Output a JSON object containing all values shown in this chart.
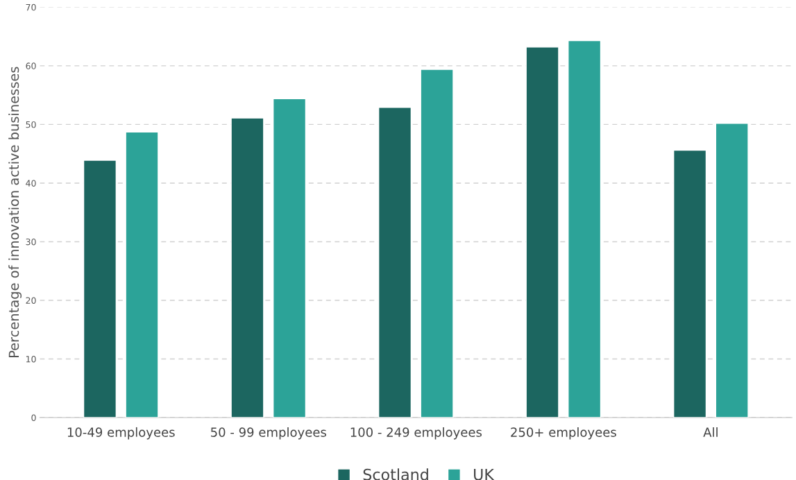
{
  "chart_data": {
    "type": "bar",
    "ylabel": "Percentage of innovation active businesses",
    "categories": [
      "10-49 employees",
      "50 - 99 employees",
      "100 - 249 employees",
      "250+ employees",
      "All"
    ],
    "series": [
      {
        "name": "Scotland",
        "color": "#1c6660",
        "values": [
          43.9,
          51.1,
          52.9,
          63.2,
          45.6
        ]
      },
      {
        "name": "UK",
        "color": "#2ca398",
        "values": [
          48.7,
          54.4,
          59.4,
          64.3,
          50.2
        ]
      }
    ],
    "ylim": [
      0,
      70
    ],
    "yticks": [
      0,
      10,
      20,
      30,
      40,
      50,
      60,
      70
    ],
    "grid": "y",
    "legend": "bottom"
  }
}
